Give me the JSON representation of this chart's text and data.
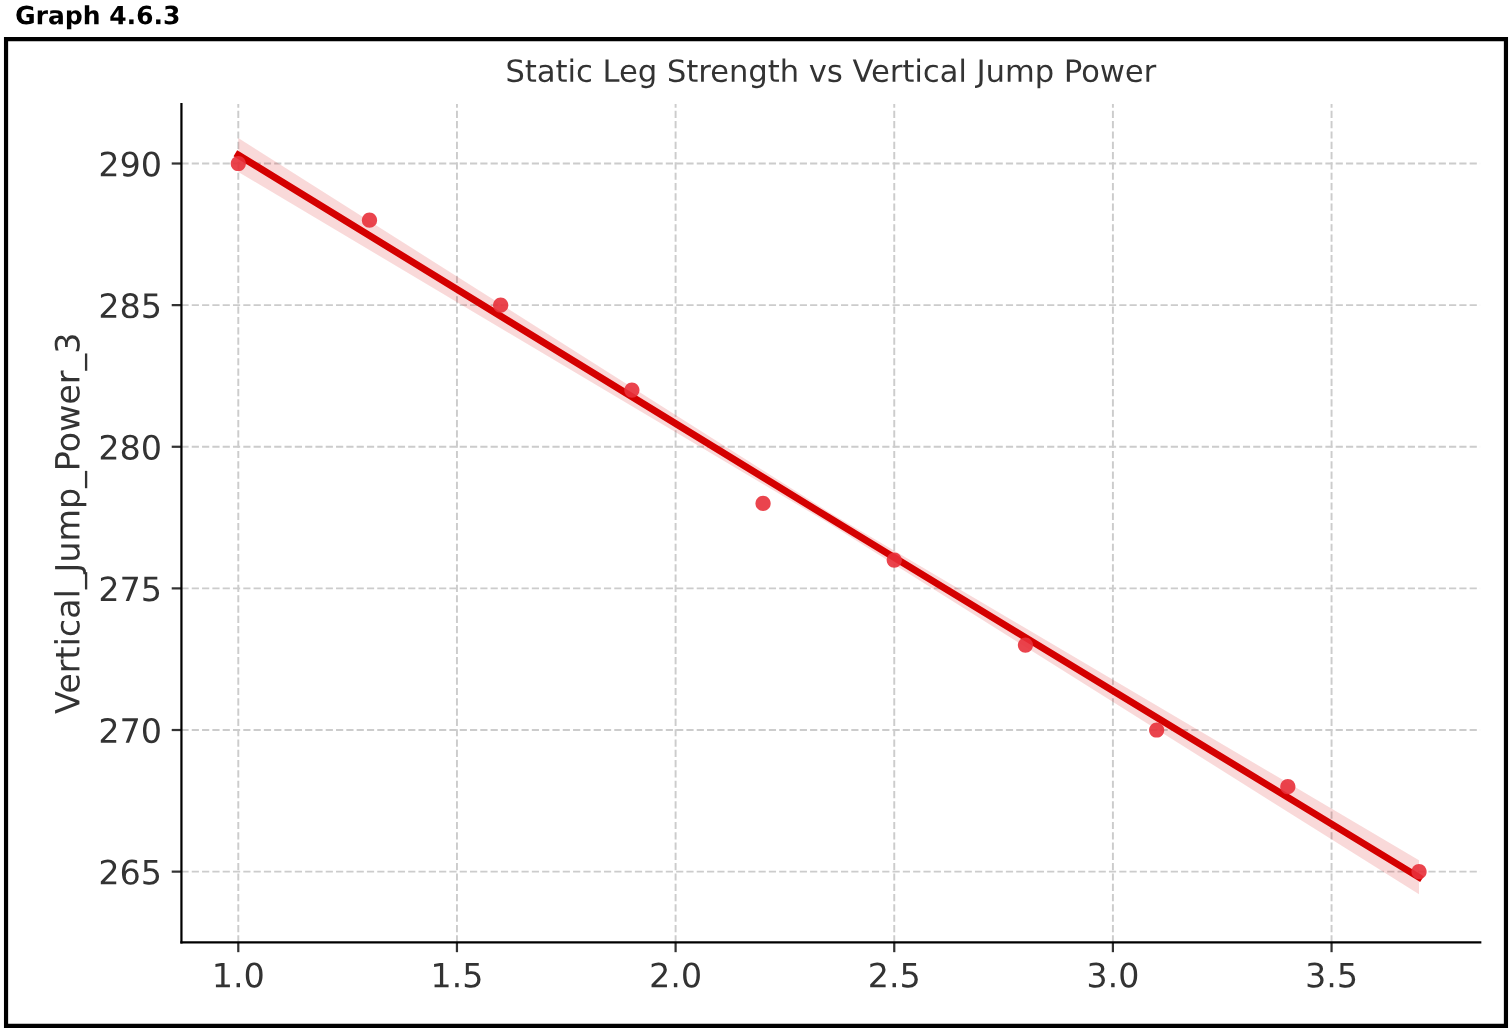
{
  "chart_data": {
    "type": "scatter",
    "title": "Static Leg Strength vs Vertical Jump Power",
    "ylabel": "Vertical_Jump_Power_3",
    "annotations": [
      "Graph 4.6.3"
    ],
    "x": [
      1.0,
      1.3,
      1.6,
      1.9,
      2.2,
      2.5,
      2.8,
      3.1,
      3.4,
      3.7
    ],
    "series": [
      {
        "marker": "circle",
        "color": "#e8303a",
        "values": [
          290,
          288,
          285,
          282,
          278,
          276,
          273,
          270,
          268,
          265
        ]
      },
      {
        "type": "line",
        "color": "#d40000",
        "x": [
          1.0,
          2.35,
          3.7
        ],
        "values": [
          290.3,
          277.5,
          264.8
        ],
        "lower": [
          289.7,
          277.3,
          264.2
        ],
        "upper": [
          290.9,
          277.7,
          265.4
        ]
      }
    ],
    "xlim": [
      0.87,
      3.84
    ],
    "ylim": [
      262.5,
      292.1
    ],
    "xticks": [
      {
        "value": 1.0,
        "label": "1.0"
      },
      {
        "value": 1.5,
        "label": "1.5"
      },
      {
        "value": 2.0,
        "label": "2.0"
      },
      {
        "value": 2.5,
        "label": "2.5"
      },
      {
        "value": 3.0,
        "label": "3.0"
      },
      {
        "value": 3.5,
        "label": "3.5"
      }
    ],
    "yticks": [
      265,
      270,
      275,
      280,
      285,
      290
    ],
    "grid": true,
    "legend": false
  }
}
